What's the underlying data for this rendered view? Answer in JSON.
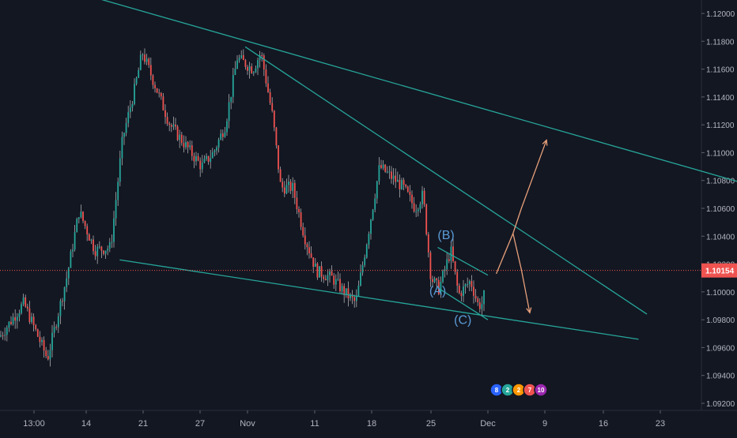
{
  "chart_data": {
    "type": "candlestick",
    "y_ticks": [
      "1.12000",
      "1.11800",
      "1.11600",
      "1.11400",
      "1.11200",
      "1.11000",
      "1.10800",
      "1.10600",
      "1.10400",
      "1.10200",
      "1.10000",
      "1.09800",
      "1.09600",
      "1.09400",
      "1.09200"
    ],
    "x_ticks": [
      "13:00",
      "14",
      "21",
      "27",
      "Nov",
      "11",
      "18",
      "25",
      "Dec",
      "9",
      "16",
      "23"
    ],
    "ylim": [
      1.0918,
      1.1202
    ],
    "last_price": 1.10154,
    "last_price_label": "1.10154",
    "colors": {
      "background": "#131722",
      "up": "#26a69a",
      "down": "#ef5350",
      "wick": "#c8c8c8",
      "trendline": "#26a69a",
      "projection": "#e8a07a",
      "wave_label": "#5b9bd5",
      "price_line": "#ef5350"
    },
    "wave_labels": [
      {
        "text": "(B)",
        "x": "26 Nov",
        "y": 1.1038
      },
      {
        "text": "(A)",
        "x": "25 Nov",
        "y": 1.0998
      },
      {
        "text": "(C)",
        "x": "28 Nov",
        "y": 1.0977
      }
    ],
    "trendlines": [
      {
        "name": "upper-channel",
        "from": {
          "x": "10 Oct",
          "y": 1.122
        },
        "to": {
          "x": "31 Dec",
          "y": 1.1079
        }
      },
      {
        "name": "steep-resistance",
        "from": {
          "x": "2 Nov",
          "y": 1.1176
        },
        "to": {
          "x": "20 Dec",
          "y": 1.0984
        }
      },
      {
        "name": "lower-support",
        "from": {
          "x": "18 Oct",
          "y": 1.1023
        },
        "to": {
          "x": "19 Dec",
          "y": 1.0966
        }
      },
      {
        "name": "wedge-upper",
        "from": {
          "x": "25 Nov",
          "y": 1.1032
        },
        "to": {
          "x": "1 Dec",
          "y": 1.1012
        }
      },
      {
        "name": "wedge-lower",
        "from": {
          "x": "25 Nov",
          "y": 1.1003
        },
        "to": {
          "x": "1 Dec",
          "y": 1.098
        }
      }
    ],
    "projections": [
      {
        "name": "bullish-path",
        "points": [
          {
            "x": "2 Dec",
            "y": 1.1013
          },
          {
            "x": "4 Dec",
            "y": 1.1042
          },
          {
            "x": "5 Dec",
            "y": 1.106
          },
          {
            "x": "8 Dec",
            "y": 1.1109
          }
        ]
      },
      {
        "name": "bearish-path",
        "points": [
          {
            "x": "4 Dec",
            "y": 1.1042
          },
          {
            "x": "5 Dec",
            "y": 1.1016
          },
          {
            "x": "6 Dec",
            "y": 1.0985
          }
        ]
      }
    ],
    "badges": [
      "8",
      "2",
      "2",
      "7",
      "10"
    ]
  }
}
